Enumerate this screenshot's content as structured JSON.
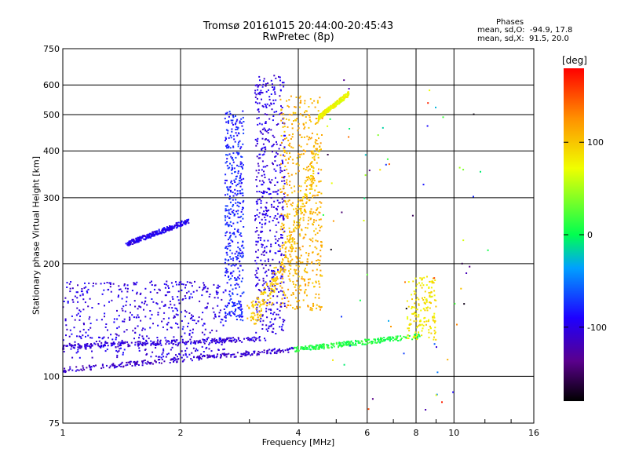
{
  "header": {
    "title_line1": "Tromsø 20161015 20:44:00-20:45:43",
    "title_line2": "RwPretec (8p)"
  },
  "stats": {
    "heading": "Phases",
    "o_line": "mean, sd,O:  -94.9, 17.8",
    "x_line": "mean, sd,X:  91.5, 20.0"
  },
  "colorbar": {
    "unit": "[deg]",
    "range": [
      -180,
      180
    ],
    "ticks": [
      "100",
      "0",
      "-100"
    ],
    "tick_values": [
      100,
      0,
      -100
    ]
  },
  "chart_data": {
    "type": "scatter",
    "title": "Tromsø 20161015 20:44:00-20:45:43",
    "subtitle": "RwPretec (8p)",
    "xlabel": "Frequency [MHz]",
    "ylabel": "Stationary phase Virtual Height [km]",
    "xscale": "log",
    "yscale": "log",
    "xlim": [
      1,
      16
    ],
    "ylim": [
      75,
      750
    ],
    "xticks": [
      1,
      2,
      4,
      6,
      8,
      10,
      16
    ],
    "xtick_labels": [
      "1",
      "2",
      "4",
      "6",
      "8",
      "10",
      "16"
    ],
    "yticks": [
      75,
      100,
      200,
      300,
      400,
      500,
      600,
      750
    ],
    "ytick_labels": [
      "75",
      "100",
      "200",
      "300",
      "400",
      "500",
      "600",
      "750"
    ],
    "grid": true,
    "color_variable": "phase [deg]",
    "traces": [
      {
        "name": "",
        "kind": "line",
        "phase": -110,
        "x_range": [
          1.0,
          3.9
        ],
        "y_range": [
          104,
          118
        ]
      },
      {
        "name": "",
        "kind": "line",
        "phase": -105,
        "x_range": [
          1.0,
          3.3
        ],
        "y_range": [
          120,
          126
        ]
      },
      {
        "name": "",
        "kind": "band",
        "phase": -100,
        "x_range": [
          1.0,
          2.6
        ],
        "y_range": [
          112,
          180
        ]
      },
      {
        "name": "",
        "kind": "line",
        "phase": -95,
        "x_range": [
          1.45,
          2.1
        ],
        "y_range": [
          225,
          260
        ]
      },
      {
        "name": "",
        "kind": "vertical",
        "phase": -80,
        "x_range": [
          2.6,
          2.9
        ],
        "y_range": [
          140,
          520
        ]
      },
      {
        "name": "",
        "kind": "band",
        "phase": -100,
        "x_range": [
          3.1,
          3.7
        ],
        "y_range": [
          130,
          640
        ]
      },
      {
        "name": "",
        "kind": "line",
        "phase": 10,
        "x_range": [
          3.9,
          8.2
        ],
        "y_range": [
          118,
          128
        ]
      },
      {
        "name": "",
        "kind": "curve",
        "phase": 100,
        "x_range": [
          3.0,
          4.5
        ],
        "y_range": [
          145,
          420
        ]
      },
      {
        "name": "",
        "kind": "band",
        "phase": 110,
        "x_range": [
          3.6,
          4.6
        ],
        "y_range": [
          150,
          560
        ]
      },
      {
        "name": "",
        "kind": "cluster",
        "phase": 85,
        "x_range": [
          7.6,
          9.0
        ],
        "y_range": [
          125,
          185
        ]
      },
      {
        "name": "",
        "kind": "line",
        "phase": 75,
        "x_range": [
          4.5,
          5.4
        ],
        "y_range": [
          490,
          570
        ]
      }
    ]
  }
}
